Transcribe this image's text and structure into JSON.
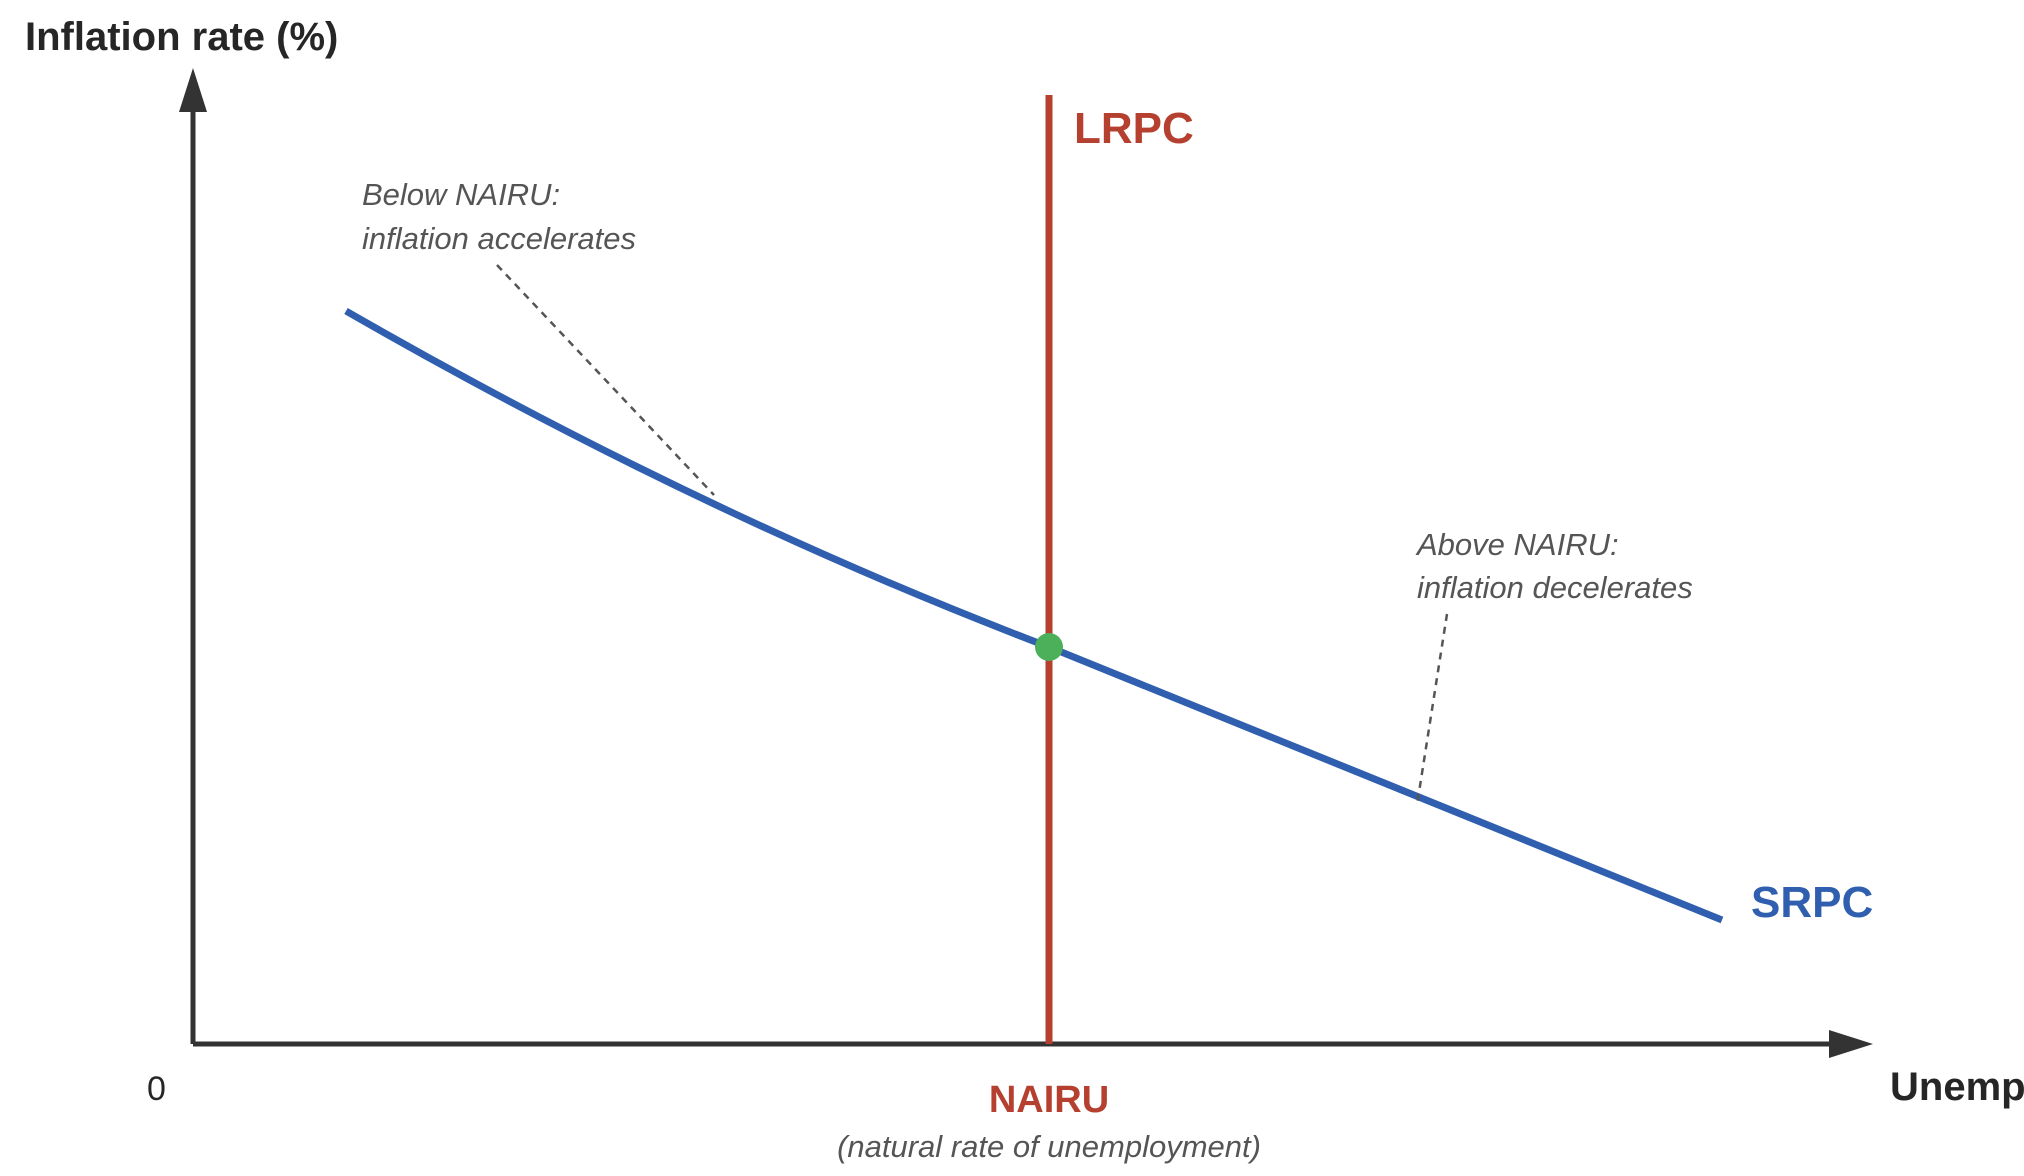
{
  "axes": {
    "y_title": "Inflation rate (%)",
    "x_title": "Unemployment rate (%)",
    "origin": "0",
    "color": "#333333"
  },
  "curves": {
    "lrpc": {
      "label": "LRPC",
      "color": "#b5402f"
    },
    "srpc": {
      "label": "SRPC",
      "color": "#2f5fae"
    }
  },
  "equilibrium": {
    "color": "#4caf5a"
  },
  "annotations": {
    "below": {
      "line1": "Below NAIRU:",
      "line2": "inflation accelerates"
    },
    "above": {
      "line1": "Above NAIRU:",
      "line2": "inflation decelerates"
    }
  },
  "nairu": {
    "label": "NAIRU",
    "sublabel": "(natural rate of unemployment)",
    "color": "#b5402f"
  }
}
